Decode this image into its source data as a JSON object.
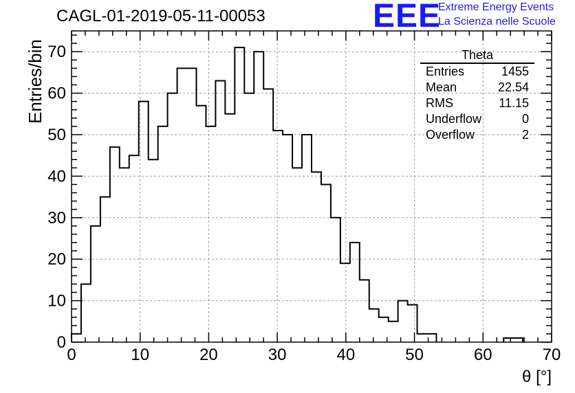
{
  "header": {
    "run_title": "CAGL-01-2019-05-11-00053",
    "logo_text": "EEE",
    "logo_line1": "Extreme Energy Events",
    "logo_line2": "La Scienza nelle Scuole"
  },
  "stats_box": {
    "title": "Theta",
    "rows": [
      {
        "label": "Entries",
        "value": "1455"
      },
      {
        "label": "Mean",
        "value": "22.54"
      },
      {
        "label": "RMS",
        "value": "11.15"
      },
      {
        "label": "Underflow",
        "value": "0"
      },
      {
        "label": "Overflow",
        "value": "2"
      }
    ]
  },
  "chart_data": {
    "type": "bar",
    "style": "step-histogram",
    "xlabel": "θ [°]",
    "ylabel": "Entries/bin",
    "xlim": [
      0,
      70
    ],
    "ylim": [
      0,
      75
    ],
    "grid": true,
    "bin_width": 1.4,
    "bin_edges_start": 0,
    "values": [
      2,
      14,
      28,
      35,
      47,
      42,
      45,
      58,
      44,
      52,
      60,
      66,
      66,
      57,
      52,
      63,
      55,
      71,
      60,
      70,
      61,
      51,
      50,
      42,
      50,
      41,
      38,
      30,
      19,
      24,
      15,
      8,
      6,
      5,
      10,
      9,
      2,
      2,
      0,
      0,
      0,
      0,
      0,
      0,
      0,
      1,
      1,
      0,
      0,
      0
    ],
    "x_ticks": [
      "0",
      "10",
      "20",
      "30",
      "40",
      "50",
      "60",
      "70"
    ],
    "y_ticks": [
      "0",
      "10",
      "20",
      "30",
      "40",
      "50",
      "60",
      "70"
    ],
    "line_color": "#000000",
    "grid_color": "#999999"
  }
}
